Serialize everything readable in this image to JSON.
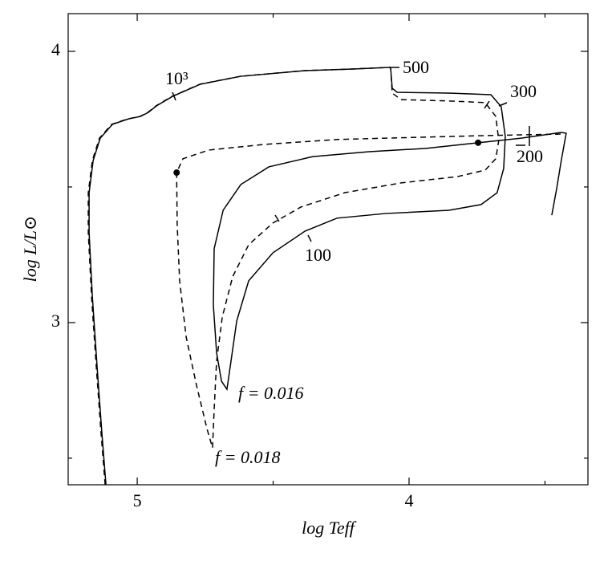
{
  "chart_data": {
    "type": "line",
    "x_label": "log Teff",
    "y_label": "log L/L⊙",
    "xlim": [
      5.254,
      3.342
    ],
    "ylim": [
      2.402,
      4.139
    ],
    "xticks": [
      5,
      4
    ],
    "yticks": [
      4,
      3
    ],
    "xminor": [
      4.5,
      3.5
    ],
    "yminor": [
      3.5,
      2.5
    ],
    "x_reversed": true,
    "series": [
      {
        "name": "f = 0.016",
        "color": "#000000",
        "dash": false,
        "x": [
          5.115,
          5.13,
          5.147,
          5.165,
          5.177,
          5.177,
          5.162,
          5.136,
          5.091,
          5.032,
          4.988,
          4.959,
          4.929,
          4.87,
          4.767,
          4.619,
          4.383,
          4.206,
          4.068,
          4.062,
          4.044,
          3.853,
          3.699,
          3.661,
          3.646,
          3.652,
          3.676,
          3.735,
          3.853,
          4.088,
          4.265,
          4.383,
          4.501,
          4.59,
          4.634,
          4.655,
          4.67,
          4.69,
          4.708,
          4.72,
          4.717,
          4.684,
          4.619,
          4.516,
          4.354,
          4.147,
          3.941,
          3.746,
          3.587,
          3.44,
          3.422,
          3.44,
          3.457,
          3.475
        ],
        "values": [
          2.402,
          2.592,
          2.828,
          3.095,
          3.331,
          3.479,
          3.598,
          3.68,
          3.731,
          3.751,
          3.76,
          3.775,
          3.799,
          3.834,
          3.879,
          3.908,
          3.929,
          3.935,
          3.941,
          3.864,
          3.849,
          3.846,
          3.84,
          3.796,
          3.686,
          3.568,
          3.479,
          3.435,
          3.414,
          3.402,
          3.385,
          3.337,
          3.257,
          3.154,
          3.006,
          2.858,
          2.754,
          2.784,
          2.888,
          3.065,
          3.272,
          3.414,
          3.509,
          3.574,
          3.612,
          3.63,
          3.642,
          3.663,
          3.68,
          3.701,
          3.698,
          3.598,
          3.494,
          3.396
        ],
        "marker": {
          "x": 3.746,
          "y": 3.663
        }
      },
      {
        "name": "f = 0.018",
        "color": "#000000",
        "dash": true,
        "x": [
          5.118,
          5.133,
          5.15,
          5.168,
          5.18,
          5.18,
          5.165,
          5.139,
          5.094,
          5.035,
          4.99,
          4.961,
          4.931,
          4.872,
          4.769,
          4.621,
          4.385,
          4.208,
          4.068,
          4.062,
          4.029,
          3.853,
          3.72,
          3.681,
          3.67,
          3.681,
          3.72,
          3.823,
          4.029,
          4.236,
          4.398,
          4.501,
          4.59,
          4.649,
          4.687,
          4.708,
          4.717,
          4.723,
          4.743,
          4.782,
          4.82,
          4.844,
          4.853,
          4.855,
          4.832,
          4.737,
          4.531,
          4.265,
          3.971,
          3.735,
          3.44
        ],
        "values": [
          2.402,
          2.592,
          2.828,
          3.095,
          3.331,
          3.479,
          3.598,
          3.68,
          3.731,
          3.751,
          3.76,
          3.775,
          3.799,
          3.834,
          3.879,
          3.908,
          3.929,
          3.935,
          3.941,
          3.846,
          3.822,
          3.817,
          3.811,
          3.76,
          3.672,
          3.604,
          3.562,
          3.538,
          3.515,
          3.479,
          3.426,
          3.367,
          3.287,
          3.169,
          3.021,
          2.858,
          2.68,
          2.538,
          2.607,
          2.769,
          2.947,
          3.154,
          3.361,
          3.553,
          3.604,
          3.636,
          3.657,
          3.675,
          3.683,
          3.689,
          3.695
        ],
        "marker": {
          "x": 4.855,
          "y": 3.553
        }
      }
    ],
    "annotations": [
      "10³",
      "500",
      "300",
      "200",
      "100"
    ]
  }
}
